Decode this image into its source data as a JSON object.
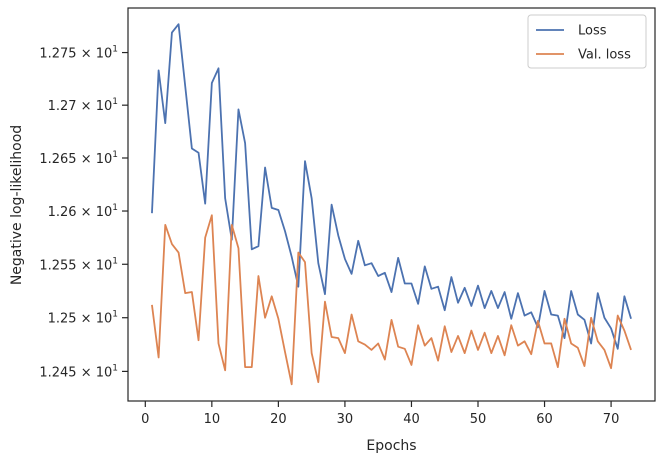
{
  "chart_data": {
    "type": "line",
    "xlabel": "Epochs",
    "ylabel": "Negative log-likelihood",
    "xlim": [
      -2.6,
      76.6
    ],
    "ylim": [
      12.4225,
      12.7925
    ],
    "xticks": [
      0,
      10,
      20,
      30,
      40,
      50,
      60,
      70
    ],
    "xtick_labels": [
      "0",
      "10",
      "20",
      "30",
      "40",
      "50",
      "60",
      "70"
    ],
    "yticks": [
      12.45,
      12.5,
      12.55,
      12.6,
      12.65,
      12.7,
      12.75
    ],
    "ytick_labels": [
      {
        "mant": "1.245",
        "exp": "1"
      },
      {
        "mant": "1.25",
        "exp": "1"
      },
      {
        "mant": "1.255",
        "exp": "1"
      },
      {
        "mant": "1.26",
        "exp": "1"
      },
      {
        "mant": "1.265",
        "exp": "1"
      },
      {
        "mant": "1.27",
        "exp": "1"
      },
      {
        "mant": "1.275",
        "exp": "1"
      }
    ],
    "y_scale": "log",
    "legend_placement": "upper-right",
    "grid": false,
    "x": [
      1,
      2,
      3,
      4,
      5,
      6,
      7,
      8,
      9,
      10,
      11,
      12,
      13,
      14,
      15,
      16,
      17,
      18,
      19,
      20,
      21,
      22,
      23,
      24,
      25,
      26,
      27,
      28,
      29,
      30,
      31,
      32,
      33,
      34,
      35,
      36,
      37,
      38,
      39,
      40,
      41,
      42,
      43,
      44,
      45,
      46,
      47,
      48,
      49,
      50,
      51,
      52,
      53,
      54,
      55,
      56,
      57,
      58,
      59,
      60,
      61,
      62,
      63,
      64,
      65,
      66,
      67,
      68,
      69,
      70,
      71,
      72,
      73
    ],
    "series": [
      {
        "name": "Loss",
        "color": "#4c72b0",
        "values": [
          12.598,
          12.733,
          12.683,
          12.769,
          12.777,
          12.718,
          12.659,
          12.655,
          12.607,
          12.721,
          12.735,
          12.612,
          12.573,
          12.696,
          12.664,
          12.564,
          12.567,
          12.641,
          12.603,
          12.601,
          12.581,
          12.557,
          12.529,
          12.647,
          12.612,
          12.551,
          12.522,
          12.606,
          12.577,
          12.555,
          12.541,
          12.572,
          12.549,
          12.551,
          12.539,
          12.542,
          12.524,
          12.556,
          12.532,
          12.532,
          12.513,
          12.548,
          12.527,
          12.529,
          12.507,
          12.538,
          12.514,
          12.528,
          12.511,
          12.53,
          12.509,
          12.525,
          12.509,
          12.524,
          12.499,
          12.523,
          12.502,
          12.505,
          12.491,
          12.525,
          12.503,
          12.502,
          12.481,
          12.525,
          12.503,
          12.498,
          12.476,
          12.523,
          12.5,
          12.49,
          12.471,
          12.52,
          12.499
        ]
      },
      {
        "name": "Val. loss",
        "color": "#dd8452",
        "values": [
          12.512,
          12.463,
          12.587,
          12.569,
          12.561,
          12.523,
          12.524,
          12.479,
          12.575,
          12.596,
          12.476,
          12.451,
          12.587,
          12.565,
          12.454,
          12.454,
          12.539,
          12.5,
          12.52,
          12.499,
          12.468,
          12.438,
          12.561,
          12.552,
          12.467,
          12.44,
          12.515,
          12.482,
          12.481,
          12.467,
          12.503,
          12.478,
          12.475,
          12.47,
          12.476,
          12.461,
          12.498,
          12.473,
          12.471,
          12.456,
          12.493,
          12.474,
          12.481,
          12.46,
          12.492,
          12.468,
          12.483,
          12.467,
          12.488,
          12.47,
          12.486,
          12.467,
          12.483,
          12.465,
          12.493,
          12.474,
          12.478,
          12.466,
          12.497,
          12.476,
          12.476,
          12.454,
          12.499,
          12.476,
          12.472,
          12.455,
          12.5,
          12.478,
          12.47,
          12.453,
          12.502,
          12.488,
          12.47
        ]
      }
    ]
  }
}
